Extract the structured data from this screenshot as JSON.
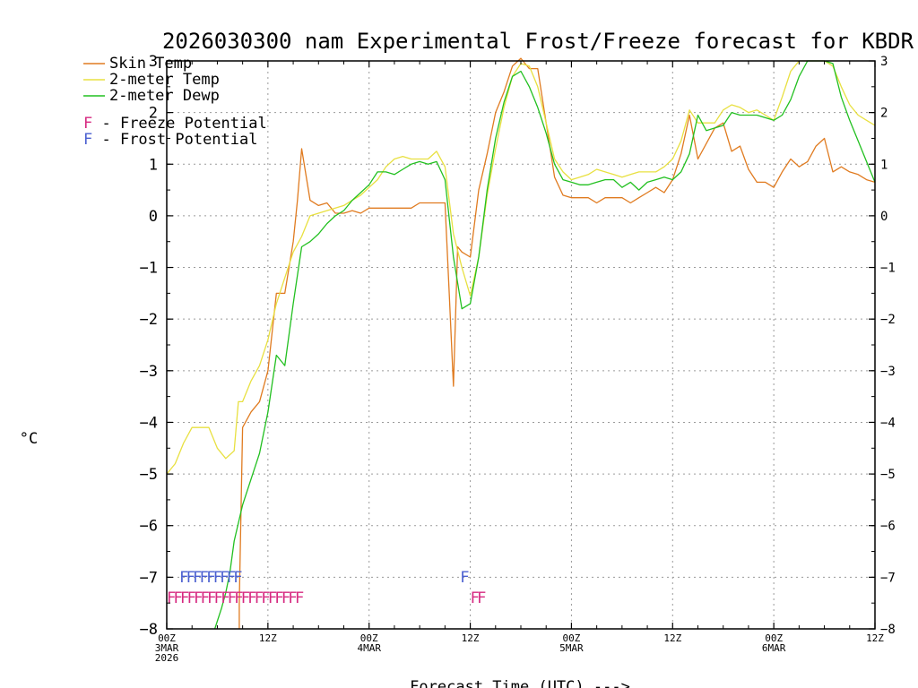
{
  "chart_data": {
    "type": "line",
    "title": "2026030300 nam Experimental Frost/Freeze forecast for KBDR",
    "ylabel": "°C",
    "xlabel": "Forecast Time (UTC) --->",
    "xlim": [
      0,
      84
    ],
    "ylim": [
      -8,
      3
    ],
    "grid": true,
    "y_ticks": [
      "-8",
      "-7",
      "-6",
      "-5",
      "-4",
      "-3",
      "-2",
      "-1",
      "0",
      "1",
      "2",
      "3"
    ],
    "x_ticks": [
      {
        "hour": 0,
        "lines": [
          "00Z",
          "3MAR",
          "2026"
        ]
      },
      {
        "hour": 12,
        "lines": [
          "12Z"
        ]
      },
      {
        "hour": 24,
        "lines": [
          "00Z",
          "4MAR"
        ]
      },
      {
        "hour": 36,
        "lines": [
          "12Z"
        ]
      },
      {
        "hour": 48,
        "lines": [
          "00Z",
          "5MAR"
        ]
      },
      {
        "hour": 60,
        "lines": [
          "12Z"
        ]
      },
      {
        "hour": 72,
        "lines": [
          "00Z",
          "6MAR"
        ]
      },
      {
        "hour": 84,
        "lines": [
          "12Z"
        ]
      }
    ],
    "series": [
      {
        "name": "Skin Temp",
        "color": "#e07b20",
        "x": [
          8.6,
          8.6,
          9,
          10,
          11,
          12,
          13,
          14,
          15,
          15.5,
          16,
          17,
          18,
          19,
          20,
          21,
          22,
          23,
          24,
          25,
          26,
          27,
          28,
          29,
          30,
          31,
          32,
          33,
          33.5,
          34,
          34.5,
          35,
          36,
          37,
          38,
          39,
          40,
          41,
          42,
          43,
          44,
          45,
          46,
          47,
          48,
          49,
          50,
          51,
          52,
          53,
          54,
          55,
          56,
          57,
          58,
          59,
          60,
          61,
          62,
          63,
          64,
          65,
          66,
          67,
          68,
          69,
          70,
          71,
          72,
          73,
          74,
          75,
          76,
          77,
          78,
          79,
          80,
          81,
          82,
          83,
          84
        ],
        "y": [
          -8,
          -7.5,
          -4.1,
          -3.8,
          -3.6,
          -3,
          -1.5,
          -1.5,
          -0.5,
          0.3,
          1.3,
          0.3,
          0.2,
          0.25,
          0.05,
          0.05,
          0.1,
          0.05,
          0.15,
          0.15,
          0.15,
          0.15,
          0.15,
          0.15,
          0.25,
          0.25,
          0.25,
          0.25,
          -1.5,
          -3.3,
          -0.6,
          -0.7,
          -0.8,
          0.5,
          1.2,
          2,
          2.4,
          2.9,
          3.05,
          2.85,
          2.85,
          1.8,
          0.75,
          0.4,
          0.35,
          0.35,
          0.35,
          0.25,
          0.35,
          0.35,
          0.35,
          0.25,
          0.35,
          0.45,
          0.55,
          0.45,
          0.7,
          1.2,
          1.95,
          1.1,
          1.4,
          1.7,
          1.8,
          1.25,
          1.35,
          0.9,
          0.65,
          0.65,
          0.55,
          0.85,
          1.1,
          0.95,
          1.05,
          1.35,
          1.5,
          0.85,
          0.95,
          0.85,
          0.8,
          0.7,
          0.65
        ]
      },
      {
        "name": "2-meter Temp",
        "color": "#e8e040",
        "x": [
          0,
          1,
          2,
          3,
          4,
          5,
          6,
          7,
          8,
          8.5,
          9,
          10,
          11,
          12,
          13,
          14,
          15,
          16,
          17,
          18,
          19,
          20,
          21,
          22,
          23,
          24,
          25,
          26,
          27,
          28,
          29,
          30,
          31,
          32,
          33,
          34,
          35,
          36,
          37,
          38,
          39,
          40,
          41,
          42,
          43,
          44,
          45,
          46,
          47,
          48,
          49,
          50,
          51,
          52,
          53,
          54,
          55,
          56,
          57,
          58,
          59,
          60,
          61,
          62,
          63,
          64,
          65,
          66,
          67,
          68,
          69,
          70,
          71,
          72,
          73,
          74,
          75,
          76,
          77,
          78,
          79,
          80,
          81,
          82,
          83,
          84
        ],
        "y": [
          -5,
          -4.8,
          -4.4,
          -4.1,
          -4.1,
          -4.1,
          -4.5,
          -4.7,
          -4.55,
          -3.6,
          -3.6,
          -3.2,
          -2.9,
          -2.4,
          -1.7,
          -1.2,
          -0.7,
          -0.4,
          0,
          0.05,
          0.1,
          0.15,
          0.2,
          0.3,
          0.4,
          0.55,
          0.7,
          0.95,
          1.1,
          1.15,
          1.1,
          1.1,
          1.1,
          1.25,
          0.95,
          -0.35,
          -1.0,
          -1.55,
          -0.8,
          0.4,
          1.3,
          2.1,
          2.7,
          2.95,
          2.9,
          2.5,
          1.8,
          1.1,
          0.85,
          0.7,
          0.75,
          0.8,
          0.9,
          0.85,
          0.8,
          0.75,
          0.8,
          0.85,
          0.85,
          0.85,
          0.95,
          1.1,
          1.45,
          2.05,
          1.8,
          1.8,
          1.8,
          2.05,
          2.15,
          2.1,
          2.0,
          2.05,
          1.95,
          1.85,
          2.3,
          2.8,
          3,
          3,
          3,
          3,
          2.9,
          2.5,
          2.15,
          1.95,
          1.85,
          1.75
        ]
      },
      {
        "name": "2-meter Dewp",
        "color": "#22c020",
        "x": [
          5.7,
          6.5,
          7,
          7.5,
          8,
          9,
          10,
          11,
          12,
          13,
          14,
          15,
          16,
          17,
          18,
          19,
          20,
          21,
          22,
          23,
          24,
          25,
          26,
          27,
          28,
          29,
          30,
          31,
          32,
          33,
          34,
          35,
          36,
          37,
          38,
          39,
          40,
          41,
          42,
          43,
          44,
          45,
          46,
          47,
          48,
          49,
          50,
          51,
          52,
          53,
          54,
          55,
          56,
          57,
          58,
          59,
          60,
          61,
          62,
          63,
          64,
          65,
          66,
          67,
          68,
          69,
          70,
          71,
          72,
          73,
          74,
          75,
          76,
          77,
          78,
          79,
          80,
          81,
          82,
          83,
          84
        ],
        "y": [
          -8,
          -7.6,
          -7.3,
          -6.9,
          -6.3,
          -5.6,
          -5.1,
          -4.6,
          -3.8,
          -2.7,
          -2.9,
          -1.7,
          -0.6,
          -0.5,
          -0.35,
          -0.15,
          0,
          0.1,
          0.3,
          0.45,
          0.6,
          0.85,
          0.85,
          0.8,
          0.9,
          1.0,
          1.05,
          1.0,
          1.05,
          0.7,
          -0.8,
          -1.8,
          -1.7,
          -0.8,
          0.5,
          1.5,
          2.2,
          2.7,
          2.8,
          2.5,
          2.1,
          1.6,
          1.0,
          0.7,
          0.65,
          0.6,
          0.6,
          0.65,
          0.7,
          0.7,
          0.55,
          0.65,
          0.5,
          0.65,
          0.7,
          0.75,
          0.7,
          0.85,
          1.2,
          1.95,
          1.65,
          1.7,
          1.75,
          2.0,
          1.95,
          1.95,
          1.95,
          1.9,
          1.85,
          1.95,
          2.25,
          2.7,
          3,
          3,
          3,
          2.95,
          2.3,
          1.85,
          1.45,
          1.05,
          0.65
        ]
      }
    ],
    "markers": [
      {
        "name": "Frost Potential",
        "color": "#4a5fd0",
        "y": -7.1,
        "hours": [
          1.5,
          2.3,
          3.1,
          3.9,
          4.7,
          5.5,
          6.3,
          7.1,
          7.9
        ],
        "extra_hours": [
          34.8
        ]
      },
      {
        "name": "Freeze Potential",
        "color": "#d62880",
        "y": -7.5,
        "hours": [
          0,
          0.8,
          1.6,
          2.4,
          3.2,
          4.0,
          4.8,
          5.6,
          6.4,
          7.2,
          8.0,
          8.8,
          9.6,
          10.4,
          11.2,
          12.0,
          12.8,
          13.6,
          14.4,
          15.2
        ],
        "extra_hours": [
          36.0,
          36.8
        ]
      }
    ],
    "legend": {
      "placement": "top-left",
      "lines": [
        "Skin Temp",
        "2-meter Temp",
        "2-meter Dewp"
      ],
      "marker_entries": [
        {
          "letter": "F",
          "label": " - Freeze Potential",
          "color": "#d62880"
        },
        {
          "letter": "F",
          "label": " - Frost Potential",
          "color": "#4a5fd0"
        }
      ]
    }
  }
}
